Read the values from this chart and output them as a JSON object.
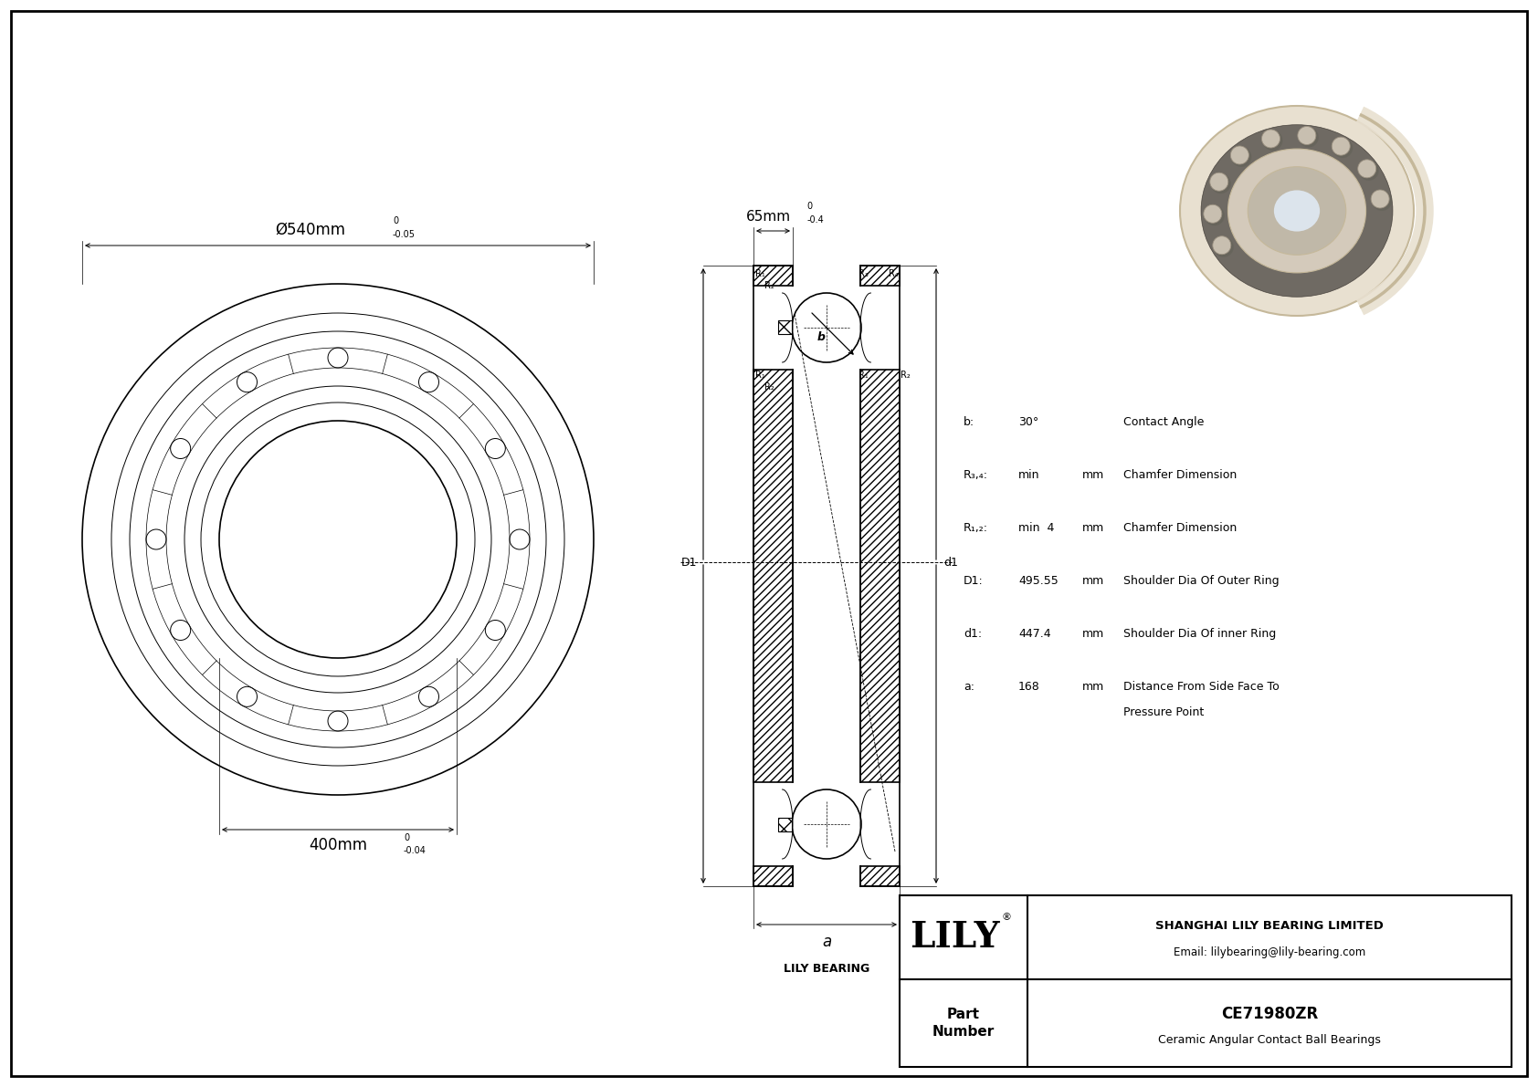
{
  "bg_color": "#ffffff",
  "line_color": "#000000",
  "outer_dim_label": "Ø540mm",
  "outer_dim_tol_upper": "0",
  "outer_dim_tol_lower": "-0.05",
  "inner_dim_label": "400mm",
  "inner_dim_tol_upper": "0",
  "inner_dim_tol_lower": "-0.04",
  "width_label": "65mm",
  "width_tol_upper": "0",
  "width_tol_lower": "-0.4",
  "spec_b_label": "b:",
  "spec_b_val": "30°",
  "spec_b_desc": "Contact Angle",
  "spec_r34_label": "R₃,₄:",
  "spec_r34_val": "min",
  "spec_r34_unit": "mm",
  "spec_r34_desc": "Chamfer Dimension",
  "spec_r12_label": "R₁,₂:",
  "spec_r12_val": "min  4",
  "spec_r12_unit": "mm",
  "spec_r12_desc": "Chamfer Dimension",
  "spec_D1_label": "D1:",
  "spec_D1_val": "495.55",
  "spec_D1_unit": "mm",
  "spec_D1_desc": "Shoulder Dia Of Outer Ring",
  "spec_d1_label": "d1:",
  "spec_d1_val": "447.4",
  "spec_d1_unit": "mm",
  "spec_d1_desc": "Shoulder Dia Of inner Ring",
  "spec_a_label": "a:",
  "spec_a_val": "168",
  "spec_a_unit": "mm",
  "spec_a_desc1": "Distance From Side Face To",
  "spec_a_desc2": "Pressure Point",
  "lily_company": "SHANGHAI LILY BEARING LIMITED",
  "lily_email": "Email: lilybearing@lily-bearing.com",
  "part_number": "CE71980ZR",
  "part_desc": "Ceramic Angular Contact Ball Bearings",
  "lily_bearing_label": "LILY BEARING",
  "drawing_lw": 1.2,
  "thin_lw": 0.7
}
